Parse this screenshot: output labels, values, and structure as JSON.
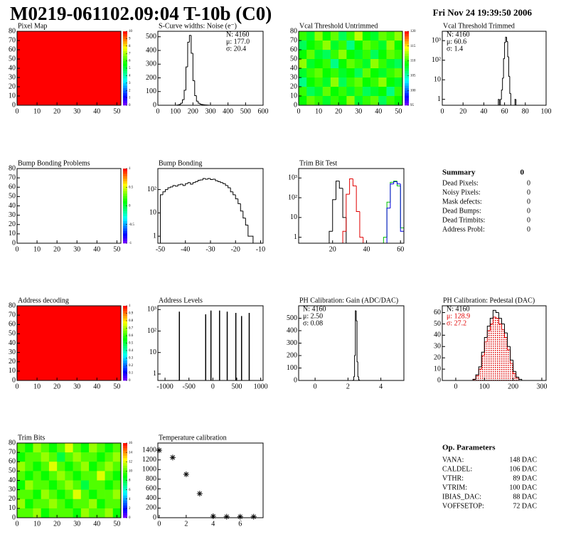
{
  "header": {
    "title": "M0219-061102.09:04 T-10b (C0)",
    "date": "Fri Nov 24 19:39:50 2006"
  },
  "chart_data": [
    {
      "type": "heatmap",
      "title": "Pixel Map",
      "z": [
        [
          10
        ]
      ],
      "zlim": [
        0,
        10
      ],
      "zticks": [
        0,
        1,
        2,
        3,
        4,
        5,
        6,
        7,
        8,
        9,
        10
      ],
      "xlim": [
        0,
        52
      ],
      "xticks": [
        0,
        10,
        20,
        30,
        40,
        50
      ],
      "ylim": [
        0,
        80
      ],
      "yticks": [
        0,
        10,
        20,
        30,
        40,
        50,
        60,
        70,
        80
      ]
    },
    {
      "type": "histogram",
      "title": "S-Curve widths: Noise (e⁻)",
      "bins": [
        100,
        110,
        120,
        130,
        140,
        150,
        160,
        170,
        180,
        190,
        200,
        210,
        220,
        230,
        240,
        250,
        260,
        270,
        280,
        290,
        300
      ],
      "series": [
        {
          "color": "#000000",
          "values": [
            0,
            2,
            5,
            15,
            40,
            110,
            280,
            460,
            510,
            380,
            180,
            70,
            30,
            15,
            8,
            5,
            3,
            2,
            1,
            0
          ]
        }
      ],
      "xlim": [
        0,
        600
      ],
      "xticks": [
        0,
        100,
        200,
        300,
        400,
        500,
        600
      ],
      "ylim": [
        0,
        540
      ],
      "yticks": [
        0,
        100,
        200,
        300,
        400,
        500
      ],
      "stats": [
        "N: 4160",
        "μ: 177.0",
        "σ: 20.4"
      ],
      "stats_corner": "top-right"
    },
    {
      "type": "heatmap",
      "title": "Vcal Threshold Untrimmed",
      "z": [
        [
          110,
          108,
          112,
          109,
          111,
          107,
          110,
          113,
          109,
          108,
          111,
          110,
          112
        ],
        [
          107,
          109,
          110,
          112,
          108,
          110,
          106,
          109,
          111,
          110,
          108,
          112,
          109
        ],
        [
          109,
          111,
          108,
          107,
          110,
          112,
          109,
          108,
          110,
          107,
          109,
          111,
          110
        ],
        [
          112,
          108,
          109,
          110,
          106,
          109,
          111,
          110,
          108,
          112,
          110,
          108,
          107
        ],
        [
          108,
          110,
          111,
          109,
          110,
          108,
          109,
          107,
          111,
          109,
          108,
          110,
          111
        ],
        [
          106,
          109,
          110,
          108,
          112,
          107,
          110,
          111,
          109,
          110,
          112,
          109,
          108
        ],
        [
          110,
          107,
          108,
          111,
          109,
          110,
          108,
          110,
          107,
          108,
          109,
          106,
          110
        ],
        [
          109,
          111,
          110,
          108,
          110,
          109,
          112,
          108,
          110,
          111,
          107,
          110,
          109
        ]
      ],
      "zlim": [
        95,
        120
      ],
      "zticks": [
        95,
        100,
        105,
        110,
        115,
        120
      ],
      "xlim": [
        0,
        52
      ],
      "xticks": [
        0,
        10,
        20,
        30,
        40,
        50
      ],
      "ylim": [
        0,
        80
      ],
      "yticks": [
        0,
        10,
        20,
        30,
        40,
        50,
        60,
        70,
        80
      ]
    },
    {
      "type": "histogram",
      "title": "Vcal Threshold Trimmed",
      "log_y": true,
      "bins": [
        50,
        51,
        52,
        53,
        54,
        55,
        56,
        57,
        58,
        59,
        60,
        61,
        62,
        63,
        64,
        65,
        66,
        67,
        68,
        69,
        70,
        71,
        72
      ],
      "series": [
        {
          "color": "#000000",
          "values": [
            0,
            0,
            0,
            0,
            1,
            0,
            1,
            3,
            12,
            120,
            800,
            1500,
            900,
            150,
            15,
            2,
            0,
            0,
            0,
            0,
            1,
            0
          ]
        }
      ],
      "xlim": [
        0,
        100
      ],
      "xticks": [
        0,
        20,
        40,
        60,
        80,
        100
      ],
      "ylim": [
        0.5,
        3000
      ],
      "yticks": [
        1,
        10,
        {
          "value": 100,
          "label": "10²"
        },
        {
          "value": 1000,
          "label": "10³"
        }
      ],
      "stats": [
        "N: 4160",
        "μ: 60.6",
        "σ:  1.4"
      ],
      "stats_corner": "top-left"
    },
    {
      "type": "heatmap",
      "title": "Bump Bonding Problems",
      "zlim": [
        -1,
        1
      ],
      "zticks": [
        -1,
        -0.5,
        0,
        0.5,
        1
      ],
      "xlim": [
        0,
        52
      ],
      "xticks": [
        0,
        10,
        20,
        30,
        40,
        50
      ],
      "ylim": [
        0,
        80
      ],
      "yticks": [
        0,
        10,
        20,
        30,
        40,
        50,
        60,
        70,
        80
      ]
    },
    {
      "type": "histogram",
      "title": "Bump Bonding",
      "log_y": true,
      "bins": [
        -50,
        -49,
        -48,
        -47,
        -46,
        -45,
        -44,
        -43,
        -42,
        -41,
        -40,
        -39,
        -38,
        -37,
        -36,
        -35,
        -34,
        -33,
        -32,
        -31,
        -30,
        -29,
        -28,
        -27,
        -26,
        -25,
        -24,
        -23,
        -22,
        -21,
        -20,
        -19,
        -18,
        -17,
        -16,
        -15,
        -14,
        -13
      ],
      "series": [
        {
          "color": "#000000",
          "values": [
            60,
            80,
            100,
            120,
            130,
            150,
            140,
            160,
            170,
            150,
            180,
            200,
            170,
            200,
            220,
            250,
            260,
            300,
            280,
            300,
            270,
            280,
            240,
            220,
            200,
            180,
            150,
            120,
            80,
            60,
            40,
            25,
            12,
            6,
            3,
            1,
            1
          ]
        }
      ],
      "xlim": [
        -51,
        -9
      ],
      "xticks": [
        -50,
        -40,
        -30,
        -20,
        -10
      ],
      "ylim": [
        0.5,
        800
      ],
      "yticks": [
        1,
        10,
        {
          "value": 100,
          "label": "10²"
        }
      ]
    },
    {
      "type": "histogram",
      "title": "Trim Bit Test",
      "log_y": true,
      "bins": [
        14,
        16,
        18,
        20,
        22,
        24,
        26,
        28,
        30,
        32,
        34,
        36,
        38,
        40,
        42,
        44,
        46,
        48,
        50,
        52,
        54,
        56,
        58,
        60,
        62
      ],
      "series": [
        {
          "color": "#000000",
          "values": [
            0,
            0,
            2,
            80,
            700,
            300,
            10,
            0,
            0,
            0,
            0,
            0,
            0,
            0,
            0,
            0,
            0,
            0,
            0,
            0,
            0,
            0,
            0,
            0
          ]
        },
        {
          "color": "#e00000",
          "values": [
            0,
            0,
            0,
            0,
            0,
            0,
            2,
            150,
            900,
            400,
            20,
            1,
            0,
            0,
            0,
            0,
            0,
            0,
            0,
            0,
            0,
            0,
            0,
            0
          ]
        },
        {
          "color": "#00c000",
          "values": [
            0,
            0,
            0,
            0,
            0,
            0,
            0,
            0,
            0,
            0,
            0,
            0,
            0,
            0,
            0,
            0,
            0,
            0,
            1,
            60,
            600,
            700,
            400,
            3
          ]
        },
        {
          "color": "#0000e0",
          "values": [
            0,
            0,
            0,
            0,
            0,
            0,
            0,
            0,
            0,
            0,
            0,
            0,
            0,
            0,
            0,
            0,
            0,
            0,
            0,
            30,
            500,
            650,
            500,
            2
          ]
        }
      ],
      "xlim": [
        0,
        62
      ],
      "xticks": [
        20,
        40,
        60
      ],
      "ylim": [
        0.5,
        3000
      ],
      "yticks": [
        1,
        10,
        {
          "value": 100,
          "label": "10²"
        },
        {
          "value": 1000,
          "label": "10³"
        }
      ]
    },
    {
      "type": "heatmap",
      "title": "Address decoding",
      "z": [
        [
          1
        ]
      ],
      "zlim": [
        0,
        1
      ],
      "zticks": [
        0,
        0.1,
        0.2,
        0.3,
        0.4,
        0.5,
        0.6,
        0.7,
        0.8,
        0.9,
        1
      ],
      "xlim": [
        0,
        52
      ],
      "xticks": [
        0,
        10,
        20,
        30,
        40,
        50
      ],
      "ylim": [
        0,
        80
      ],
      "yticks": [
        0,
        10,
        20,
        30,
        40,
        50,
        60,
        70,
        80
      ]
    },
    {
      "type": "spike",
      "title": "Address Levels",
      "log_y": true,
      "x": [
        -700,
        -150,
        -40,
        140,
        300,
        480,
        600,
        760
      ],
      "series": [
        {
          "color": "#000000",
          "values": [
            800,
            600,
            900,
            900,
            800,
            700,
            500,
            700
          ]
        }
      ],
      "xlim": [
        -1150,
        1050
      ],
      "xticks": [
        -1000,
        -500,
        0,
        500,
        1000
      ],
      "ylim": [
        0.5,
        1500
      ],
      "yticks": [
        1,
        10,
        {
          "value": 100,
          "label": "10²"
        },
        {
          "value": 1000,
          "label": "10³"
        }
      ]
    },
    {
      "type": "histogram",
      "title": "PH Calibration: Gain (ADC/DAC)",
      "bins": [
        2.3,
        2.35,
        2.4,
        2.45,
        2.5,
        2.55,
        2.6,
        2.65,
        2.7,
        2.75,
        2.8
      ],
      "series": [
        {
          "color": "#000000",
          "values": [
            2,
            30,
            200,
            560,
            480,
            150,
            30,
            5,
            1,
            0
          ]
        }
      ],
      "xlim": [
        -1,
        5.4
      ],
      "xticks": [
        0,
        2,
        4
      ],
      "ylim": [
        0,
        600
      ],
      "yticks": [
        0,
        100,
        200,
        300,
        400,
        500
      ],
      "stats": [
        "N: 4160",
        "μ: 2.50",
        "σ: 0.08"
      ],
      "stats_corner": "top-left"
    },
    {
      "type": "histogram",
      "title": "PH Calibration: Pedestal (DAC)",
      "bins": [
        60,
        70,
        80,
        90,
        100,
        110,
        120,
        130,
        140,
        150,
        160,
        170,
        180,
        190,
        200,
        210,
        220,
        230
      ],
      "series": [
        {
          "color": "#e00000",
          "fill": "hatch",
          "values": [
            1,
            4,
            10,
            22,
            34,
            44,
            50,
            56,
            55,
            50,
            45,
            38,
            27,
            15,
            6,
            2,
            0
          ]
        },
        {
          "color": "#000000",
          "values": [
            1,
            5,
            12,
            25,
            38,
            48,
            55,
            62,
            60,
            55,
            50,
            42,
            30,
            18,
            8,
            3,
            1
          ]
        }
      ],
      "xlim": [
        -47,
        315
      ],
      "xticks": [
        0,
        100,
        200,
        300
      ],
      "ylim": [
        0,
        66
      ],
      "yticks": [
        0,
        10,
        20,
        30,
        40,
        50,
        60
      ],
      "stats": [
        "N: 4160",
        "μ: 128.9",
        "σ: 27.2"
      ],
      "stats_colors": [
        "#000000",
        "#e00000",
        "#e00000"
      ],
      "stats_corner": "top-left"
    },
    {
      "type": "heatmap",
      "title": "Trim Bits",
      "z": [
        [
          10,
          9,
          11,
          10,
          9,
          10,
          12,
          10,
          9,
          11,
          10,
          9,
          10
        ],
        [
          9,
          10,
          10,
          11,
          10,
          8,
          10,
          11,
          10,
          10,
          9,
          10,
          11
        ],
        [
          11,
          10,
          9,
          10,
          12,
          10,
          9,
          10,
          11,
          9,
          10,
          11,
          10
        ],
        [
          10,
          9,
          10,
          9,
          10,
          11,
          10,
          9,
          10,
          10,
          12,
          10,
          9
        ],
        [
          9,
          11,
          10,
          10,
          9,
          10,
          11,
          10,
          8,
          10,
          10,
          9,
          10
        ],
        [
          10,
          10,
          9,
          11,
          10,
          9,
          10,
          12,
          10,
          9,
          10,
          10,
          11
        ],
        [
          11,
          9,
          10,
          10,
          11,
          10,
          9,
          10,
          10,
          11,
          9,
          10,
          10
        ],
        [
          10,
          10,
          11,
          9,
          10,
          10,
          10,
          9,
          11,
          10,
          10,
          11,
          9
        ]
      ],
      "zlim": [
        0,
        16
      ],
      "zticks": [
        0,
        2,
        4,
        6,
        8,
        10,
        12,
        14,
        16
      ],
      "xlim": [
        0,
        52
      ],
      "xticks": [
        0,
        10,
        20,
        30,
        40,
        50
      ],
      "ylim": [
        0,
        80
      ],
      "yticks": [
        0,
        10,
        20,
        30,
        40,
        50,
        60,
        70,
        80
      ]
    },
    {
      "type": "scatter",
      "title": "Temperature calibration",
      "x": [
        0,
        1,
        2,
        3,
        4,
        5,
        6,
        7
      ],
      "series": [
        {
          "color": "#000000",
          "values": [
            1400,
            1250,
            900,
            500,
            30,
            20,
            20,
            20
          ]
        }
      ],
      "xlim": [
        -0.1,
        7.7
      ],
      "xticks": [
        0,
        2,
        4,
        6
      ],
      "ylim": [
        0,
        1550
      ],
      "yticks": [
        0,
        200,
        400,
        600,
        800,
        1000,
        1200,
        1400
      ]
    }
  ],
  "summary": {
    "title": "Summary",
    "total": "0",
    "rows": [
      [
        "Dead Pixels:",
        "0"
      ],
      [
        "Noisy Pixels:",
        "0"
      ],
      [
        "Mask defects:",
        "0"
      ],
      [
        "Dead Bumps:",
        "0"
      ],
      [
        "Dead Trimbits:",
        "0"
      ],
      [
        "Address Probl:",
        "0"
      ]
    ]
  },
  "op_parameters": {
    "title": "Op. Parameters",
    "rows": [
      [
        "VANA:",
        "148 DAC"
      ],
      [
        "CALDEL:",
        "106 DAC"
      ],
      [
        "VTHR:",
        "89 DAC"
      ],
      [
        "VTRIM:",
        "100 DAC"
      ],
      [
        "IBIAS_DAC:",
        "88 DAC"
      ],
      [
        "VOFFSETOP:",
        "72 DAC"
      ]
    ]
  }
}
